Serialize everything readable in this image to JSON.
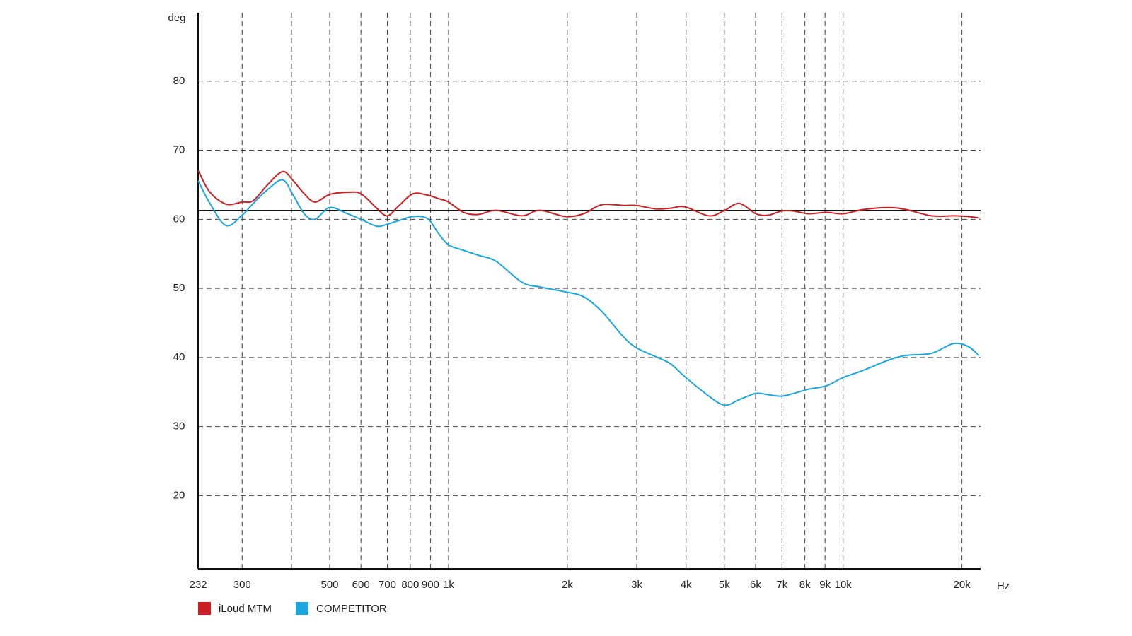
{
  "chart_data": {
    "type": "line",
    "y_label": "deg",
    "x_label": "Hz",
    "log_x": true,
    "grid": true,
    "legend": "bottom-left",
    "xlim": [
      232,
      22300
    ],
    "ylim": [
      9.4,
      89.9
    ],
    "xticks": [
      232,
      300,
      {
        "value": 400,
        "label": null
      },
      500,
      600,
      700,
      800,
      900,
      {
        "value": 1000,
        "label": "1k"
      },
      {
        "value": 2000,
        "label": "2k"
      },
      {
        "value": 3000,
        "label": "3k"
      },
      {
        "value": 4000,
        "label": "4k"
      },
      {
        "value": 5000,
        "label": "5k"
      },
      {
        "value": 6000,
        "label": "6k"
      },
      {
        "value": 7000,
        "label": "7k"
      },
      {
        "value": 8000,
        "label": "8k"
      },
      {
        "value": 9000,
        "label": "9k"
      },
      {
        "value": 10000,
        "label": "10k"
      },
      {
        "value": 20000,
        "label": "20k"
      }
    ],
    "yticks": [
      20,
      30,
      40,
      50,
      60,
      70,
      80
    ],
    "reference_line": 61.3,
    "x": [
      232,
      248,
      273,
      300,
      320,
      348,
      380,
      404,
      431,
      459,
      500,
      555,
      600,
      658,
      700,
      747,
      813,
      885,
      942,
      1000,
      1093,
      1190,
      1322,
      1533,
      1704,
      1977,
      2198,
      2443,
      2774,
      2993,
      3354,
      3651,
      3973,
      4571,
      5012,
      5458,
      6015,
      6470,
      6980,
      7498,
      8160,
      9073,
      10000,
      11210,
      13000,
      14450,
      16750,
      19020,
      20720,
      22080
    ],
    "series": [
      {
        "name": "iLoud MTM",
        "color": "#cc1f24",
        "values": [
          67.1,
          64.0,
          62.2,
          62.5,
          62.7,
          65.0,
          66.9,
          65.6,
          63.7,
          62.5,
          63.6,
          63.9,
          63.7,
          61.6,
          60.5,
          61.9,
          63.7,
          63.5,
          63.0,
          62.5,
          61.0,
          60.7,
          61.3,
          60.5,
          61.3,
          60.4,
          60.8,
          62.1,
          62.0,
          62.0,
          61.5,
          61.6,
          61.8,
          60.5,
          61.3,
          62.3,
          60.8,
          60.6,
          61.2,
          61.2,
          60.8,
          61.0,
          60.8,
          61.4,
          61.7,
          61.4,
          60.5,
          60.5,
          60.4,
          60.2
        ]
      },
      {
        "name": "COMPETITOR",
        "color": "#1ba6e0",
        "values": [
          65.6,
          62.4,
          59.1,
          60.6,
          62.3,
          64.3,
          65.7,
          63.5,
          60.8,
          60.0,
          61.7,
          60.8,
          60.0,
          59.0,
          59.3,
          59.8,
          60.4,
          60.1,
          58.0,
          56.3,
          55.5,
          54.8,
          53.9,
          50.9,
          50.2,
          49.5,
          48.8,
          46.7,
          43.0,
          41.4,
          40.1,
          39.1,
          37.2,
          34.4,
          33.1,
          33.9,
          34.8,
          34.6,
          34.4,
          34.8,
          35.4,
          35.9,
          37.1,
          38.1,
          39.6,
          40.3,
          40.6,
          42.0,
          41.6,
          40.3
        ]
      }
    ]
  }
}
